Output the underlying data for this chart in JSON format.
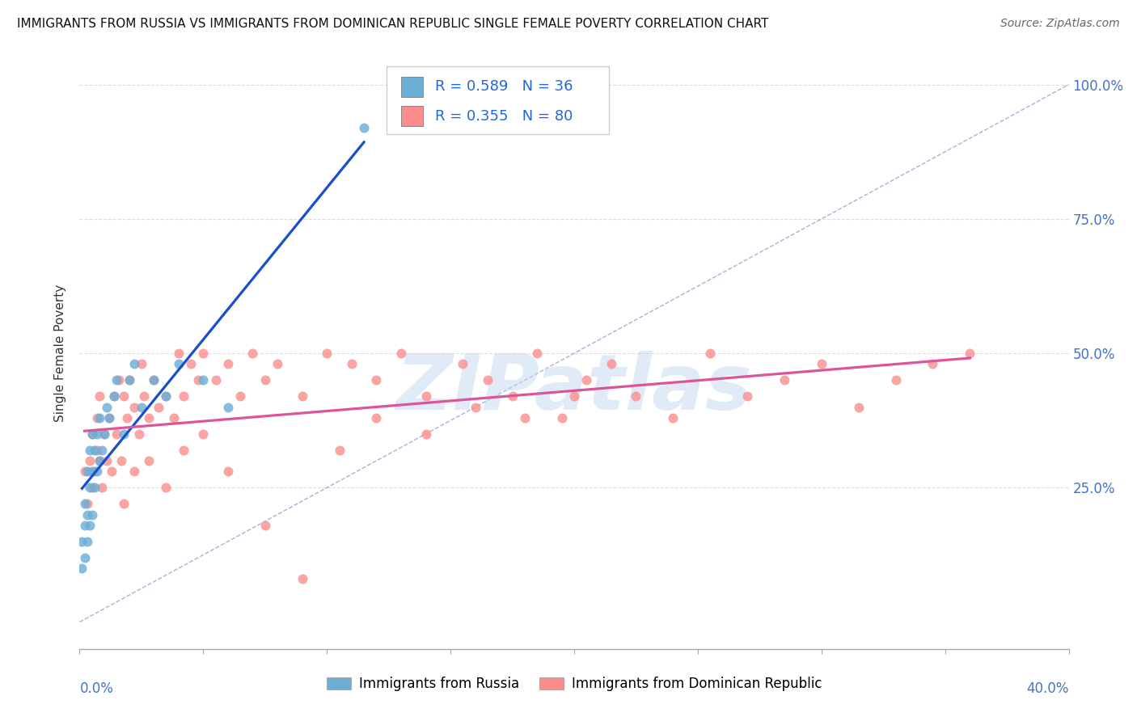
{
  "title": "IMMIGRANTS FROM RUSSIA VS IMMIGRANTS FROM DOMINICAN REPUBLIC SINGLE FEMALE POVERTY CORRELATION CHART",
  "source": "Source: ZipAtlas.com",
  "ylabel": "Single Female Poverty",
  "xlim": [
    0.0,
    0.4
  ],
  "ylim": [
    -0.05,
    1.05
  ],
  "yplot_min": 0.0,
  "yplot_max": 1.0,
  "russia_color": "#6baed6",
  "dr_color": "#fc8d8d",
  "russia_line_color": "#1a4fcc",
  "dr_line_color": "#dd5599",
  "diag_color": "#8899cc",
  "russia_R": 0.589,
  "russia_N": 36,
  "dr_R": 0.355,
  "dr_N": 80,
  "watermark": "ZIPatlas",
  "grid_color": "#dddddd",
  "background_color": "#ffffff",
  "ytick_values": [
    0.0,
    0.25,
    0.5,
    0.75,
    1.0
  ],
  "ytick_labels_right": [
    "",
    "25.0%",
    "50.0%",
    "75.0%",
    "100.0%"
  ],
  "xtick_label_left": "0.0%",
  "xtick_label_right": "40.0%",
  "legend_russia_label": "Immigrants from Russia",
  "legend_dr_label": "Immigrants from Dominican Republic",
  "russia_x": [
    0.001,
    0.001,
    0.002,
    0.002,
    0.002,
    0.003,
    0.003,
    0.003,
    0.004,
    0.004,
    0.004,
    0.005,
    0.005,
    0.005,
    0.006,
    0.006,
    0.007,
    0.007,
    0.008,
    0.008,
    0.009,
    0.01,
    0.011,
    0.012,
    0.014,
    0.015,
    0.018,
    0.02,
    0.022,
    0.025,
    0.03,
    0.035,
    0.04,
    0.05,
    0.06,
    0.115
  ],
  "russia_y": [
    0.1,
    0.15,
    0.12,
    0.18,
    0.22,
    0.15,
    0.2,
    0.28,
    0.18,
    0.25,
    0.32,
    0.2,
    0.28,
    0.35,
    0.25,
    0.32,
    0.28,
    0.35,
    0.3,
    0.38,
    0.32,
    0.35,
    0.4,
    0.38,
    0.42,
    0.45,
    0.35,
    0.45,
    0.48,
    0.4,
    0.45,
    0.42,
    0.48,
    0.45,
    0.4,
    0.92
  ],
  "dr_x": [
    0.002,
    0.003,
    0.004,
    0.005,
    0.005,
    0.006,
    0.007,
    0.007,
    0.008,
    0.008,
    0.009,
    0.01,
    0.011,
    0.012,
    0.013,
    0.014,
    0.015,
    0.016,
    0.017,
    0.018,
    0.019,
    0.02,
    0.022,
    0.024,
    0.025,
    0.026,
    0.028,
    0.03,
    0.032,
    0.035,
    0.038,
    0.04,
    0.042,
    0.045,
    0.048,
    0.05,
    0.055,
    0.06,
    0.065,
    0.07,
    0.075,
    0.08,
    0.09,
    0.1,
    0.11,
    0.12,
    0.13,
    0.14,
    0.155,
    0.165,
    0.175,
    0.185,
    0.195,
    0.205,
    0.215,
    0.225,
    0.24,
    0.255,
    0.27,
    0.285,
    0.3,
    0.315,
    0.33,
    0.345,
    0.36,
    0.018,
    0.022,
    0.028,
    0.035,
    0.042,
    0.05,
    0.06,
    0.075,
    0.09,
    0.105,
    0.12,
    0.14,
    0.16,
    0.18,
    0.2
  ],
  "dr_y": [
    0.28,
    0.22,
    0.3,
    0.25,
    0.35,
    0.28,
    0.32,
    0.38,
    0.3,
    0.42,
    0.25,
    0.35,
    0.3,
    0.38,
    0.28,
    0.42,
    0.35,
    0.45,
    0.3,
    0.42,
    0.38,
    0.45,
    0.4,
    0.35,
    0.48,
    0.42,
    0.38,
    0.45,
    0.4,
    0.42,
    0.38,
    0.5,
    0.42,
    0.48,
    0.45,
    0.5,
    0.45,
    0.48,
    0.42,
    0.5,
    0.45,
    0.48,
    0.42,
    0.5,
    0.48,
    0.45,
    0.5,
    0.42,
    0.48,
    0.45,
    0.42,
    0.5,
    0.38,
    0.45,
    0.48,
    0.42,
    0.38,
    0.5,
    0.42,
    0.45,
    0.48,
    0.4,
    0.45,
    0.48,
    0.5,
    0.22,
    0.28,
    0.3,
    0.25,
    0.32,
    0.35,
    0.28,
    0.18,
    0.08,
    0.32,
    0.38,
    0.35,
    0.4,
    0.38,
    0.42
  ]
}
